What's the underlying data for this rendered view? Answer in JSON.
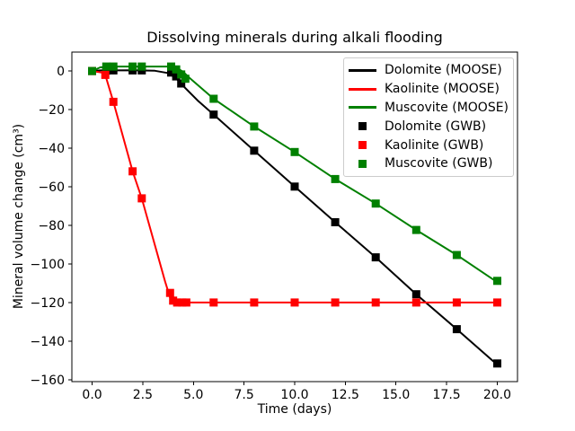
{
  "figure": {
    "background": "#ffffff",
    "frame_color": "#000000",
    "tick_color": "#000000",
    "legend_border_color": "#cccccc"
  },
  "chart_data": {
    "type": "line",
    "title": "Dissolving minerals during alkali flooding",
    "xlabel": "Time (days)",
    "ylabel": "Mineral volume change (cm³)",
    "xlim": [
      -1,
      21
    ],
    "ylim": [
      -161,
      9.8
    ],
    "grid": false,
    "legend_position": "upper right",
    "xticks": [
      0,
      2.5,
      5,
      7.5,
      10,
      12.5,
      15,
      17.5,
      20
    ],
    "xtick_labels": [
      "0.0",
      "2.5",
      "5.0",
      "7.5",
      "10.0",
      "12.5",
      "15.0",
      "17.5",
      "20.0"
    ],
    "yticks": [
      0,
      -20,
      -40,
      -60,
      -80,
      -100,
      -120,
      -140,
      -160
    ],
    "ytick_labels": [
      "0",
      "−20",
      "−40",
      "−60",
      "−80",
      "−100",
      "−120",
      "−140",
      "−160"
    ],
    "series": [
      {
        "name": "Dolomite (MOOSE)",
        "kind": "line",
        "color": "#000000",
        "points": [
          [
            0,
            0
          ],
          [
            0.4,
            0.3
          ],
          [
            2,
            0.4
          ],
          [
            3.1,
            0.1
          ],
          [
            3.7,
            -1
          ],
          [
            4.1,
            -3.3
          ],
          [
            4.4,
            -6.7
          ],
          [
            5.2,
            -15.2
          ],
          [
            6,
            -22.6
          ],
          [
            8,
            -41.3
          ],
          [
            10,
            -59.9
          ],
          [
            12,
            -78.4
          ],
          [
            14,
            -96.6
          ],
          [
            16,
            -115.7
          ],
          [
            18,
            -133.8
          ],
          [
            20,
            -152.3
          ]
        ]
      },
      {
        "name": "Kaolinite (MOOSE)",
        "kind": "line",
        "color": "#ff0000",
        "points": [
          [
            0,
            0
          ],
          [
            0.62,
            -1
          ],
          [
            1.05,
            -16
          ],
          [
            2,
            -52
          ],
          [
            2.45,
            -66
          ],
          [
            3.6,
            -109
          ],
          [
            3.88,
            -118.5
          ],
          [
            4.05,
            -120
          ],
          [
            20,
            -120
          ]
        ]
      },
      {
        "name": "Muscovite (MOOSE)",
        "kind": "line",
        "color": "#008000",
        "points": [
          [
            0,
            0
          ],
          [
            0.4,
            1.9
          ],
          [
            1,
            2.3
          ],
          [
            3.9,
            2.3
          ],
          [
            4.2,
            1.5
          ],
          [
            4.5,
            -0.5
          ],
          [
            4.8,
            -3.5
          ],
          [
            6,
            -14.4
          ],
          [
            8,
            -28.8
          ],
          [
            10,
            -42
          ],
          [
            12,
            -56
          ],
          [
            14,
            -68.7
          ],
          [
            16,
            -82.4
          ],
          [
            18,
            -95.4
          ],
          [
            20,
            -109.5
          ]
        ]
      },
      {
        "name": "Dolomite (GWB)",
        "kind": "scatter",
        "marker": "square",
        "color": "#000000",
        "points": [
          [
            0,
            0
          ],
          [
            0.7,
            0.2
          ],
          [
            1.05,
            0.3
          ],
          [
            2,
            0.3
          ],
          [
            2.45,
            0.3
          ],
          [
            3.9,
            -0.8
          ],
          [
            4.15,
            -2.8
          ],
          [
            4.4,
            -6.5
          ],
          [
            6,
            -22.6
          ],
          [
            8,
            -41.3
          ],
          [
            10,
            -59.9
          ],
          [
            12,
            -78.4
          ],
          [
            14,
            -96.6
          ],
          [
            16,
            -115.7
          ],
          [
            18,
            -133.8
          ],
          [
            20,
            -151.6
          ]
        ]
      },
      {
        "name": "Kaolinite (GWB)",
        "kind": "scatter",
        "marker": "square",
        "color": "#ff0000",
        "points": [
          [
            0,
            0
          ],
          [
            0.65,
            -2
          ],
          [
            1.05,
            -16
          ],
          [
            2,
            -52
          ],
          [
            2.45,
            -66
          ],
          [
            3.85,
            -115
          ],
          [
            4,
            -119
          ],
          [
            4.2,
            -120
          ],
          [
            4.45,
            -120
          ],
          [
            4.65,
            -120
          ],
          [
            6,
            -120
          ],
          [
            8,
            -120
          ],
          [
            10,
            -120
          ],
          [
            12,
            -120
          ],
          [
            14,
            -120
          ],
          [
            16,
            -120
          ],
          [
            18,
            -120
          ],
          [
            20,
            -120
          ]
        ]
      },
      {
        "name": "Muscovite (GWB)",
        "kind": "scatter",
        "marker": "square",
        "color": "#008000",
        "points": [
          [
            0,
            0
          ],
          [
            0.7,
            2.3
          ],
          [
            1.05,
            2.3
          ],
          [
            2,
            2.3
          ],
          [
            2.45,
            2.3
          ],
          [
            3.9,
            2.3
          ],
          [
            4.15,
            0.8
          ],
          [
            4.4,
            -1.8
          ],
          [
            4.6,
            -4
          ],
          [
            6,
            -14.4
          ],
          [
            8,
            -28.8
          ],
          [
            10,
            -42
          ],
          [
            12,
            -56
          ],
          [
            14,
            -68.7
          ],
          [
            16,
            -82.4
          ],
          [
            18,
            -95.4
          ],
          [
            20,
            -108.8
          ]
        ]
      }
    ]
  }
}
